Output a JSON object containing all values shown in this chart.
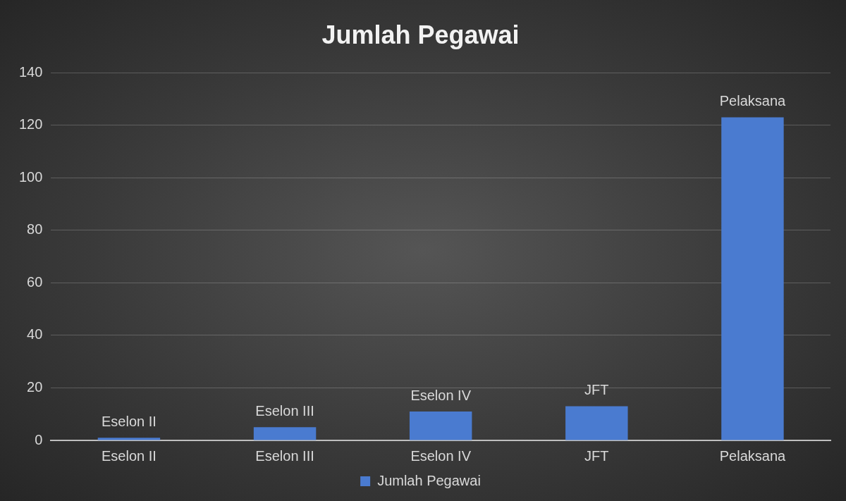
{
  "chart_data": {
    "type": "bar",
    "title": "Jumlah Pegawai",
    "categories": [
      "Eselon II",
      "Eselon III",
      "Eselon IV",
      "JFT",
      "Pelaksana"
    ],
    "series": [
      {
        "name": "Jumlah Pegawai",
        "color": "#4a7bd0",
        "values": [
          1,
          5,
          11,
          13,
          123
        ]
      }
    ],
    "ylim": [
      0,
      140
    ],
    "yticks": [
      0,
      20,
      40,
      60,
      80,
      100,
      120,
      140
    ],
    "grid": "y",
    "legend": "bottom",
    "annotations": [
      {
        "text": "Eselon II",
        "x": "Eselon II",
        "y": 1
      },
      {
        "text": "Eselon III",
        "x": "Eselon III",
        "y": 5
      },
      {
        "text": "Eselon IV",
        "x": "Eselon IV",
        "y": 11
      },
      {
        "text": "JFT",
        "x": "JFT",
        "y": 13
      },
      {
        "text": "Pelaksana",
        "x": "Pelaksana",
        "y": 123
      }
    ]
  }
}
